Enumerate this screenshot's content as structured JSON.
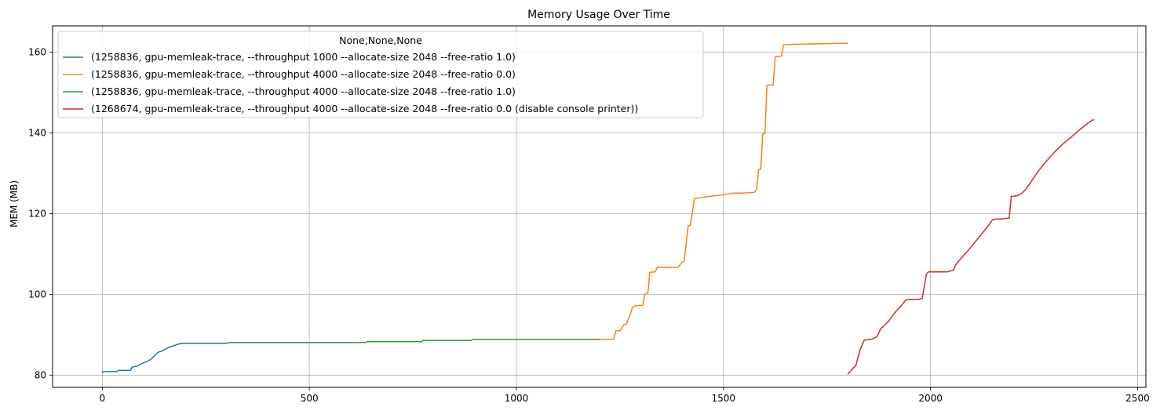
{
  "chart_data": {
    "type": "line",
    "title": "Memory Usage Over Time",
    "xlabel": "",
    "ylabel": "MEM (MB)",
    "xlim": [
      -120,
      2520
    ],
    "ylim": [
      77,
      166.5
    ],
    "xticks": [
      0,
      500,
      1000,
      1500,
      2000,
      2500
    ],
    "yticks": [
      80,
      100,
      120,
      140,
      160
    ],
    "grid": true,
    "legend": {
      "title": "None,None,None",
      "placement": "upper-left"
    },
    "series": [
      {
        "name": "(1258836, gpu-memleak-trace, --throughput 1000 --allocate-size 2048 --free-ratio 1.0)",
        "color": "#1f77b4",
        "x": [
          0,
          2,
          35,
          38,
          68,
          72,
          85,
          92,
          100,
          108,
          115,
          120,
          125,
          130,
          135,
          142,
          150,
          158,
          165,
          172,
          180,
          188,
          195,
          205,
          240,
          300,
          305,
          600
        ],
        "y": [
          80.5,
          80.9,
          80.9,
          81.2,
          81.2,
          82.0,
          82.3,
          82.7,
          83.1,
          83.4,
          83.8,
          84.2,
          84.7,
          85.2,
          85.7,
          85.9,
          86.3,
          86.8,
          87.0,
          87.3,
          87.6,
          87.8,
          87.9,
          87.9,
          87.9,
          87.9,
          88.1,
          88.1
        ]
      },
      {
        "name": "(1258836, gpu-memleak-trace, --throughput 4000 --allocate-size 2048 --free-ratio 0.0)",
        "color": "#ff7f0e",
        "x": [
          1200,
          1235,
          1240,
          1250,
          1260,
          1265,
          1275,
          1280,
          1290,
          1305,
          1310,
          1318,
          1322,
          1335,
          1340,
          1365,
          1390,
          1400,
          1405,
          1415,
          1420,
          1430,
          1440,
          1460,
          1475,
          1500,
          1525,
          1550,
          1575,
          1580,
          1585,
          1590,
          1595,
          1600,
          1605,
          1620,
          1625,
          1640,
          1645,
          1655,
          1700,
          1800
        ],
        "y": [
          88.9,
          88.9,
          91.0,
          91.0,
          92.6,
          92.6,
          95.0,
          96.8,
          97.3,
          97.3,
          100.0,
          100.5,
          105.5,
          105.6,
          106.7,
          106.7,
          106.7,
          108.0,
          108.2,
          117.1,
          117.1,
          123.7,
          123.9,
          124.2,
          124.4,
          124.7,
          125.1,
          125.1,
          125.3,
          126.0,
          130.9,
          131.0,
          139.8,
          139.9,
          151.8,
          151.9,
          158.8,
          159.0,
          161.8,
          161.9,
          162.0,
          162.2
        ]
      },
      {
        "name": "(1258836, gpu-memleak-trace, --throughput 4000 --allocate-size 2048 --free-ratio 1.0)",
        "color": "#2ca02c",
        "x": [
          600,
          635,
          640,
          770,
          775,
          890,
          895,
          1200
        ],
        "y": [
          88.1,
          88.1,
          88.3,
          88.3,
          88.6,
          88.6,
          88.9,
          88.9
        ]
      },
      {
        "name": "(1268674, gpu-memleak-trace, --throughput 4000 --allocate-size 2048 --free-ratio 0.0 (disable console printer))",
        "color": "#d62728",
        "x": [
          1800,
          1805,
          1810,
          1815,
          1820,
          1825,
          1830,
          1835,
          1840,
          1850,
          1860,
          1870,
          1880,
          1890,
          1900,
          1910,
          1920,
          1930,
          1940,
          1950,
          1960,
          1970,
          1980,
          1990,
          1995,
          2000,
          2010,
          2040,
          2055,
          2060,
          2070,
          2080,
          2090,
          2100,
          2110,
          2120,
          2130,
          2140,
          2150,
          2160,
          2170,
          2190,
          2195,
          2200,
          2210,
          2220,
          2230,
          2240,
          2250,
          2260,
          2270,
          2280,
          2290,
          2300,
          2310,
          2320,
          2330,
          2340,
          2350,
          2360,
          2370,
          2380,
          2390,
          2395
        ],
        "y": [
          80.3,
          80.8,
          81.3,
          82.0,
          82.5,
          84.5,
          86.3,
          87.5,
          88.7,
          88.8,
          89.0,
          89.5,
          91.5,
          92.5,
          93.5,
          95.0,
          96.2,
          97.3,
          98.6,
          98.8,
          98.8,
          98.8,
          99.0,
          105.0,
          105.6,
          105.6,
          105.6,
          105.6,
          106.0,
          107.2,
          108.5,
          109.7,
          110.8,
          112.0,
          113.3,
          114.5,
          115.8,
          117.1,
          118.5,
          118.7,
          118.7,
          118.9,
          124.3,
          124.3,
          124.5,
          125.0,
          126.0,
          127.5,
          129.0,
          130.5,
          131.8,
          133.0,
          134.2,
          135.3,
          136.3,
          137.3,
          138.2,
          139.0,
          139.9,
          140.8,
          141.6,
          142.4,
          143.1,
          143.3
        ]
      }
    ]
  }
}
